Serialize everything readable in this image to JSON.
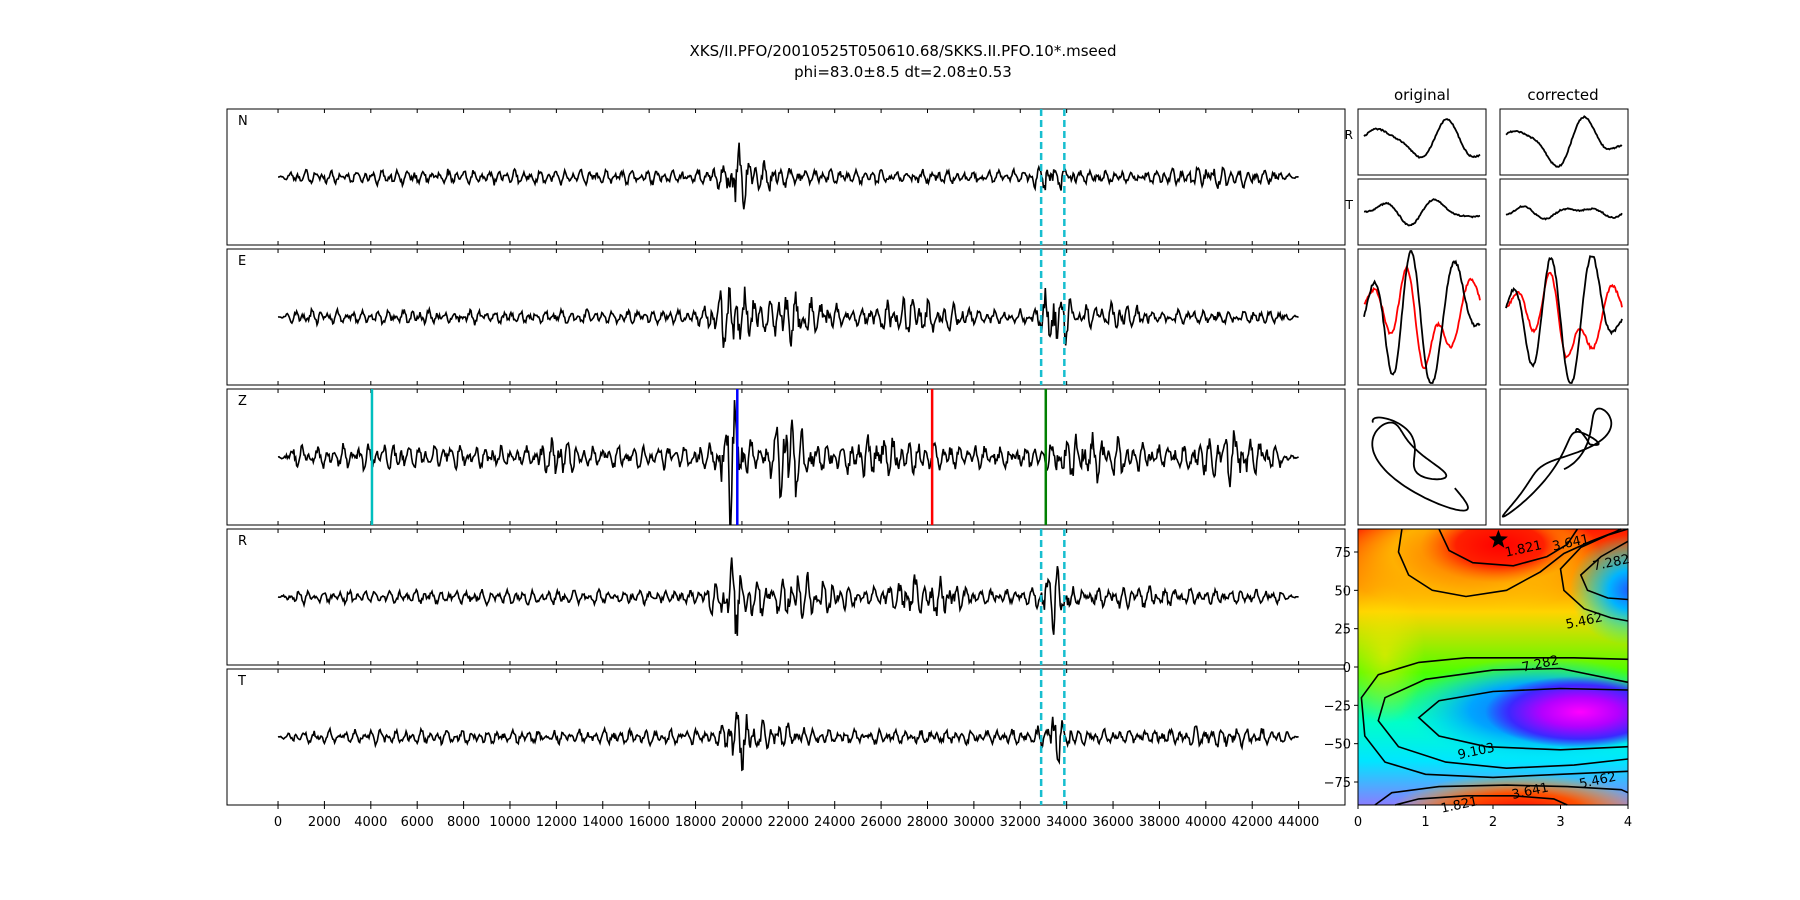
{
  "title": "XKS/II.PFO/20010525T050610.68/SKKS.II.PFO.10*.mseed",
  "subtitle": "phi=83.0±8.5 dt=2.08±0.53",
  "colors": {
    "trace": "#000000",
    "window": "#17becf",
    "pick_cyan": "#00bfbf",
    "pick_blue": "#0000ff",
    "pick_red": "#ff0000",
    "pick_green": "#008000",
    "particle_red": "#ff0000",
    "best_marker": "#000000"
  },
  "chart_data": [
    {
      "type": "line",
      "name": "waveform-stack",
      "panels": [
        "N",
        "E",
        "Z",
        "R",
        "T"
      ],
      "xlim": [
        -2200,
        46000
      ],
      "xticks": [
        0,
        2000,
        4000,
        6000,
        8000,
        10000,
        12000,
        14000,
        16000,
        18000,
        20000,
        22000,
        24000,
        26000,
        28000,
        30000,
        32000,
        34000,
        36000,
        38000,
        40000,
        42000,
        44000
      ],
      "xtick_labels": [
        "0",
        "2000",
        "4000",
        "6000",
        "8000",
        "10000",
        "12000",
        "14000",
        "16000",
        "18000",
        "20000",
        "22000",
        "24000",
        "26000",
        "28000",
        "30000",
        "32000",
        "34000",
        "36000",
        "38000",
        "40000",
        "42000",
        "44000"
      ],
      "trace_x_range": [
        0,
        44000
      ],
      "window_lines": [
        32900,
        33900
      ],
      "window_panels": [
        "N",
        "E",
        "R",
        "T"
      ],
      "z_picks": [
        {
          "x": 4050,
          "color": "#00bfbf"
        },
        {
          "x": 19800,
          "color": "#0000ff"
        },
        {
          "x": 28200,
          "color": "#ff0000"
        },
        {
          "x": 33100,
          "color": "#008000"
        }
      ]
    },
    {
      "type": "line",
      "name": "particle-waveforms",
      "column_titles": [
        "original",
        "corrected"
      ],
      "row_labels": [
        "R",
        "T"
      ]
    },
    {
      "type": "line",
      "name": "particle-motion",
      "rows": 1
    },
    {
      "type": "heatmap",
      "name": "error-surface",
      "xlim": [
        0,
        4
      ],
      "ylim": [
        -90,
        90
      ],
      "xticks": [
        0,
        1,
        2,
        3,
        4
      ],
      "xtick_labels": [
        "0",
        "1",
        "2",
        "3",
        "4"
      ],
      "yticks": [
        75,
        50,
        25,
        0,
        -25,
        -50,
        -75
      ],
      "ytick_labels": [
        "75",
        "50",
        "25",
        "0",
        "−25",
        "−50",
        "−75"
      ],
      "best_fit": {
        "dt": 2.08,
        "phi": 83.0
      },
      "contour_labels": [
        {
          "text": "1.821",
          "dt": 2.45,
          "phi": 77
        },
        {
          "text": "3.641",
          "dt": 3.15,
          "phi": 81
        },
        {
          "text": "7.282",
          "dt": 3.75,
          "phi": 68
        },
        {
          "text": "5.462",
          "dt": 3.35,
          "phi": 30
        },
        {
          "text": "7.282",
          "dt": 2.7,
          "phi": 2
        },
        {
          "text": "9.103",
          "dt": 1.75,
          "phi": -55
        },
        {
          "text": "5.462",
          "dt": 3.55,
          "phi": -74
        },
        {
          "text": "3.641",
          "dt": 2.55,
          "phi": -81
        },
        {
          "text": "1.821",
          "dt": 1.5,
          "phi": -90
        }
      ]
    }
  ]
}
